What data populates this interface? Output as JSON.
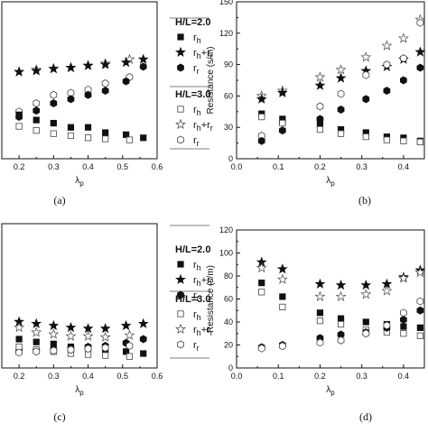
{
  "chart_data": [
    {
      "id": "a",
      "panel_label": "(a)",
      "type": "scatter",
      "xlabel": "λp",
      "ylabel": "",
      "xlim": [
        0.15,
        0.6
      ],
      "ylim": [
        0,
        150
      ],
      "xticks": [
        0.2,
        0.3,
        0.4,
        0.5,
        0.6
      ],
      "xtick_labels": [
        "0.2",
        "0.3",
        "0.4",
        "0.5",
        "0.6"
      ],
      "yticks": [],
      "legend": {
        "placement": "right",
        "groups": [
          {
            "title": "H/L=2.0",
            "entries": [
              {
                "label": "rh",
                "main": "r",
                "sub": "h",
                "marker": "square-filled"
              },
              {
                "label": "rh+rr",
                "main": "r",
                "sub": "h",
                "tail": "+r",
                "tailsub": "r",
                "marker": "star-filled"
              },
              {
                "label": "rr",
                "main": "r",
                "sub": "r",
                "marker": "hexagon-filled"
              }
            ]
          },
          {
            "title": "H/L=3.0",
            "entries": [
              {
                "label": "rh",
                "main": "r",
                "sub": "h",
                "marker": "square-open"
              },
              {
                "label": "rh+rr",
                "main": "r",
                "sub": "h",
                "tail": "+r",
                "tailsub": "r",
                "marker": "star-open"
              },
              {
                "label": "rr",
                "main": "r",
                "sub": "r",
                "marker": "hexagon-open"
              }
            ]
          }
        ]
      },
      "series": [
        {
          "marker": "star-open",
          "x": [
            0.2,
            0.25,
            0.3,
            0.35,
            0.4,
            0.45,
            0.52
          ],
          "y": [
            83,
            85,
            86,
            87,
            89,
            91,
            95
          ]
        },
        {
          "marker": "star-filled",
          "x": [
            0.2,
            0.25,
            0.3,
            0.35,
            0.4,
            0.45,
            0.51,
            0.56
          ],
          "y": [
            83,
            84,
            86,
            87,
            89,
            90,
            92,
            95
          ]
        },
        {
          "marker": "hexagon-open",
          "x": [
            0.2,
            0.25,
            0.3,
            0.35,
            0.4,
            0.45,
            0.52
          ],
          "y": [
            45,
            53,
            61,
            63,
            66,
            72,
            78
          ]
        },
        {
          "marker": "hexagon-filled",
          "x": [
            0.2,
            0.25,
            0.3,
            0.35,
            0.4,
            0.45,
            0.51,
            0.56
          ],
          "y": [
            40,
            46,
            53,
            57,
            61,
            65,
            74,
            88
          ]
        },
        {
          "marker": "square-filled",
          "x": [
            0.2,
            0.25,
            0.3,
            0.35,
            0.4,
            0.45,
            0.51,
            0.56
          ],
          "y": [
            42,
            37,
            34,
            30,
            30,
            25,
            23,
            20
          ]
        },
        {
          "marker": "square-open",
          "x": [
            0.2,
            0.25,
            0.3,
            0.35,
            0.4,
            0.45,
            0.52
          ],
          "y": [
            31,
            27,
            24,
            22,
            20,
            19,
            18
          ]
        }
      ]
    },
    {
      "id": "b",
      "panel_label": "(b)",
      "type": "scatter",
      "xlabel": "λp",
      "ylabel": "Resistance (s/m)",
      "xlim": [
        0,
        0.45
      ],
      "ylim": [
        0,
        150
      ],
      "xticks": [
        0.0,
        0.1,
        0.2,
        0.3,
        0.4
      ],
      "xtick_labels": [
        "0.0",
        "0.1",
        "0.2",
        "0.3",
        "0.4"
      ],
      "yticks": [
        0,
        30,
        60,
        90,
        120,
        150
      ],
      "series": [
        {
          "marker": "star-open",
          "x": [
            0.06,
            0.11,
            0.2,
            0.25,
            0.31,
            0.36,
            0.4,
            0.44
          ],
          "y": [
            60,
            65,
            78,
            85,
            97,
            108,
            115,
            133
          ]
        },
        {
          "marker": "star-filled",
          "x": [
            0.06,
            0.11,
            0.2,
            0.25,
            0.31,
            0.36,
            0.4,
            0.44
          ],
          "y": [
            57,
            63,
            70,
            77,
            84,
            88,
            95,
            102
          ]
        },
        {
          "marker": "hexagon-open",
          "x": [
            0.06,
            0.11,
            0.2,
            0.25,
            0.31,
            0.36,
            0.4,
            0.44
          ],
          "y": [
            22,
            35,
            50,
            62,
            80,
            90,
            96,
            130
          ]
        },
        {
          "marker": "hexagon-filled",
          "x": [
            0.06,
            0.11,
            0.2,
            0.25,
            0.31,
            0.36,
            0.4,
            0.44
          ],
          "y": [
            17,
            27,
            38,
            47,
            57,
            65,
            75,
            87
          ]
        },
        {
          "marker": "square-filled",
          "x": [
            0.06,
            0.11,
            0.2,
            0.25,
            0.31,
            0.36,
            0.4,
            0.44
          ],
          "y": [
            43,
            38,
            33,
            28,
            25,
            21,
            20,
            17
          ]
        },
        {
          "marker": "square-open",
          "x": [
            0.06,
            0.11,
            0.2,
            0.25,
            0.31,
            0.36,
            0.4,
            0.44
          ],
          "y": [
            40,
            34,
            28,
            24,
            21,
            18,
            17,
            16
          ]
        }
      ]
    },
    {
      "id": "c",
      "panel_label": "(c)",
      "type": "scatter",
      "xlabel": "λp",
      "ylabel": "",
      "xlim": [
        0.15,
        0.6
      ],
      "ylim": [
        0,
        150
      ],
      "xticks": [
        0.2,
        0.3,
        0.4,
        0.5,
        0.6
      ],
      "xtick_labels": [
        "0.2",
        "0.3",
        "0.4",
        "0.5",
        "0.6"
      ],
      "yticks": [],
      "legend": {
        "placement": "top-right",
        "groups": [
          {
            "title": "H/L=2.0",
            "entries": [
              {
                "label": "rh",
                "main": "r",
                "sub": "h",
                "marker": "square-filled"
              },
              {
                "label": "rh+rr",
                "main": "r",
                "sub": "h",
                "tail": "+r",
                "tailsub": "r",
                "marker": "star-filled"
              },
              {
                "label": "rr",
                "main": "r",
                "sub": "r",
                "marker": "hexagon-filled"
              }
            ]
          },
          {
            "title": "H/L=3.0",
            "entries": [
              {
                "label": "rh",
                "main": "r",
                "sub": "h",
                "marker": "square-open"
              },
              {
                "label": "rh+rr",
                "main": "r",
                "sub": "h",
                "tail": "+r",
                "tailsub": "r",
                "marker": "star-open"
              },
              {
                "label": "rr",
                "main": "r",
                "sub": "r",
                "marker": "hexagon-open"
              }
            ]
          }
        ]
      },
      "series": [
        {
          "marker": "star-filled",
          "x": [
            0.2,
            0.25,
            0.3,
            0.35,
            0.4,
            0.45,
            0.51,
            0.56
          ],
          "y": [
            48,
            46,
            44,
            42,
            41,
            41,
            44,
            46
          ]
        },
        {
          "marker": "star-open",
          "x": [
            0.2,
            0.25,
            0.3,
            0.35,
            0.4,
            0.45,
            0.52
          ],
          "y": [
            42,
            37,
            35,
            33,
            33,
            32,
            34
          ]
        },
        {
          "marker": "square-filled",
          "x": [
            0.2,
            0.25,
            0.3,
            0.35,
            0.4,
            0.45,
            0.51,
            0.56
          ],
          "y": [
            30,
            27,
            25,
            22,
            21,
            19,
            17,
            15
          ]
        },
        {
          "marker": "hexagon-filled",
          "x": [
            0.2,
            0.25,
            0.3,
            0.35,
            0.4,
            0.45,
            0.51,
            0.56
          ],
          "y": [
            18,
            18,
            19,
            20,
            22,
            23,
            26,
            30
          ]
        },
        {
          "marker": "square-open",
          "x": [
            0.2,
            0.25,
            0.3,
            0.35,
            0.4,
            0.45,
            0.52
          ],
          "y": [
            22,
            19,
            17,
            15,
            14,
            13,
            12
          ]
        },
        {
          "marker": "hexagon-open",
          "x": [
            0.2,
            0.25,
            0.3,
            0.35,
            0.4,
            0.45,
            0.52
          ],
          "y": [
            16,
            17,
            18,
            19,
            20,
            21,
            23
          ]
        }
      ]
    },
    {
      "id": "d",
      "panel_label": "(d)",
      "type": "scatter",
      "xlabel": "λp",
      "ylabel": "Resistance (s/m)",
      "xlim": [
        0,
        0.45
      ],
      "ylim": [
        0,
        120
      ],
      "xticks": [
        0.0,
        0.1,
        0.2,
        0.3,
        0.4
      ],
      "xtick_labels": [
        "0.0",
        "0.1",
        "0.2",
        "0.3",
        "0.4"
      ],
      "yticks": [
        0,
        20,
        40,
        60,
        80,
        100,
        120
      ],
      "series": [
        {
          "marker": "star-filled",
          "x": [
            0.06,
            0.11,
            0.2,
            0.25,
            0.31,
            0.36,
            0.4,
            0.44
          ],
          "y": [
            92,
            86,
            73,
            72,
            72,
            73,
            79,
            85
          ]
        },
        {
          "marker": "star-open",
          "x": [
            0.06,
            0.11,
            0.2,
            0.25,
            0.31,
            0.36,
            0.4,
            0.44
          ],
          "y": [
            87,
            77,
            62,
            62,
            64,
            67,
            78,
            83
          ]
        },
        {
          "marker": "square-filled",
          "x": [
            0.06,
            0.11,
            0.2,
            0.25,
            0.31,
            0.36,
            0.4,
            0.44
          ],
          "y": [
            74,
            62,
            48,
            43,
            40,
            38,
            36,
            35
          ]
        },
        {
          "marker": "square-open",
          "x": [
            0.06,
            0.11,
            0.2,
            0.25,
            0.31,
            0.36,
            0.4,
            0.44
          ],
          "y": [
            66,
            53,
            41,
            38,
            33,
            31,
            30,
            28
          ]
        },
        {
          "marker": "hexagon-filled",
          "x": [
            0.06,
            0.11,
            0.2,
            0.25,
            0.31,
            0.36,
            0.4,
            0.44
          ],
          "y": [
            18,
            20,
            26,
            29,
            31,
            35,
            42,
            50
          ]
        },
        {
          "marker": "hexagon-open",
          "x": [
            0.06,
            0.11,
            0.2,
            0.25,
            0.31,
            0.36,
            0.4,
            0.44
          ],
          "y": [
            17,
            19,
            22,
            24,
            30,
            37,
            48,
            58
          ]
        }
      ]
    }
  ]
}
